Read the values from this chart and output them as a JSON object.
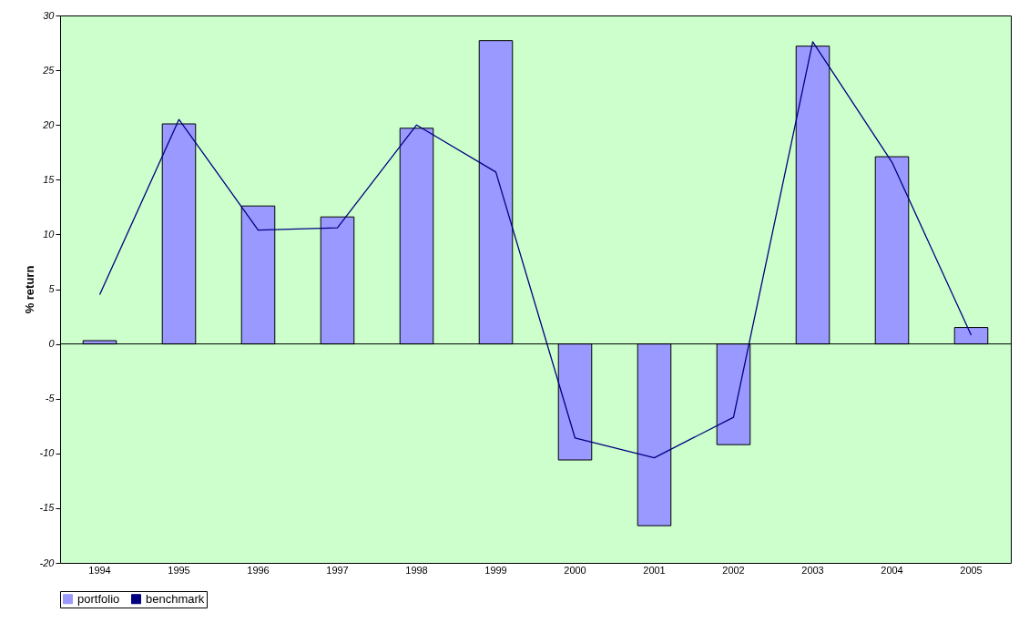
{
  "chart_data": {
    "type": "bar",
    "ylabel": "% return",
    "categories": [
      "1994",
      "1995",
      "1996",
      "1997",
      "1998",
      "1999",
      "2000",
      "2001",
      "2002",
      "2003",
      "2004",
      "2005"
    ],
    "series": [
      {
        "name": "portfolio",
        "color": "#9999ff",
        "values": [
          0.3,
          20.1,
          12.6,
          11.6,
          19.7,
          27.7,
          -10.6,
          -16.6,
          -9.2,
          27.2,
          17.1,
          1.5
        ]
      },
      {
        "name": "benchmark",
        "type": "line",
        "color": "#000080",
        "values": [
          4.5,
          20.5,
          10.4,
          10.6,
          20.0,
          15.7,
          -8.6,
          -10.4,
          -6.7,
          27.6,
          16.6,
          0.8
        ]
      }
    ],
    "ylim": [
      -20,
      30
    ],
    "yticks": [
      -20,
      -15,
      -10,
      -5,
      0,
      5,
      10,
      15,
      20,
      25,
      30
    ],
    "ref_lines": [
      {
        "axis": "y",
        "value": 0,
        "color": "#000000"
      }
    ],
    "grid": false,
    "legend": "bottom",
    "marker": "none",
    "line_style": "solid"
  }
}
